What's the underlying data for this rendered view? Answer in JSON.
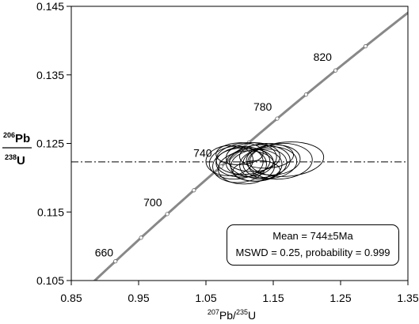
{
  "chart_data": {
    "type": "scatter",
    "subtype": "concordia",
    "title": "",
    "xlabel": "207Pb/235U",
    "ylabel": "206Pb/238U",
    "axis_labels": {
      "x": {
        "sup": "207",
        "mid": "Pb/",
        "sup2": "235",
        "end": "U"
      },
      "y_num": {
        "sup": "206",
        "base": "Pb"
      },
      "y_den": {
        "sup": "238",
        "base": "U"
      }
    },
    "xlim": [
      0.85,
      1.35
    ],
    "ylim": [
      0.105,
      0.145
    ],
    "x_ticks": [
      "0.85",
      "0.95",
      "1.05",
      "1.15",
      "1.25",
      "1.35"
    ],
    "y_ticks": [
      "0.105",
      "0.115",
      "0.125",
      "0.135",
      "0.145"
    ],
    "concordia_ages": [
      {
        "label": "660",
        "age": 660
      },
      {
        "label": "700",
        "age": 700
      },
      {
        "label": "740",
        "age": 740
      },
      {
        "label": "780",
        "age": 780
      },
      {
        "label": "820",
        "age": 820
      }
    ],
    "concordia_markers_ma": [
      660,
      680,
      700,
      720,
      740,
      760,
      780,
      800,
      820,
      840
    ],
    "mean_line_y": 0.1223,
    "ellipses": [
      {
        "x": 1.085,
        "y": 0.1225,
        "rx": 0.035,
        "ry": 0.0022,
        "tilt": -3
      },
      {
        "x": 1.095,
        "y": 0.1222,
        "rx": 0.04,
        "ry": 0.0024,
        "tilt": -4
      },
      {
        "x": 1.1,
        "y": 0.1218,
        "rx": 0.04,
        "ry": 0.0025,
        "tilt": -5
      },
      {
        "x": 1.105,
        "y": 0.1223,
        "rx": 0.04,
        "ry": 0.0022,
        "tilt": -3
      },
      {
        "x": 1.11,
        "y": 0.1228,
        "rx": 0.045,
        "ry": 0.0023,
        "tilt": -4
      },
      {
        "x": 1.11,
        "y": 0.1215,
        "rx": 0.042,
        "ry": 0.0024,
        "tilt": -5
      },
      {
        "x": 1.115,
        "y": 0.1222,
        "rx": 0.035,
        "ry": 0.002,
        "tilt": -3
      },
      {
        "x": 1.12,
        "y": 0.123,
        "rx": 0.04,
        "ry": 0.0021,
        "tilt": -2
      },
      {
        "x": 1.125,
        "y": 0.1218,
        "rx": 0.038,
        "ry": 0.0023,
        "tilt": -4
      },
      {
        "x": 1.13,
        "y": 0.1224,
        "rx": 0.045,
        "ry": 0.0024,
        "tilt": -3
      },
      {
        "x": 1.135,
        "y": 0.122,
        "rx": 0.035,
        "ry": 0.0022,
        "tilt": -6
      },
      {
        "x": 1.14,
        "y": 0.1232,
        "rx": 0.04,
        "ry": 0.0018,
        "tilt": -2
      },
      {
        "x": 1.145,
        "y": 0.1222,
        "rx": 0.04,
        "ry": 0.0023,
        "tilt": -4
      },
      {
        "x": 1.15,
        "y": 0.1226,
        "rx": 0.04,
        "ry": 0.0022,
        "tilt": -3
      },
      {
        "x": 1.16,
        "y": 0.1224,
        "rx": 0.048,
        "ry": 0.0026,
        "tilt": -4
      },
      {
        "x": 1.17,
        "y": 0.1227,
        "rx": 0.055,
        "ry": 0.0025,
        "tilt": -4
      },
      {
        "x": 1.125,
        "y": 0.121,
        "rx": 0.035,
        "ry": 0.0015,
        "tilt": -2
      },
      {
        "x": 1.1,
        "y": 0.1235,
        "rx": 0.035,
        "ry": 0.0016,
        "tilt": -2
      }
    ],
    "stats": {
      "mean": "Mean = 744±5Ma",
      "mswd": "MSWD = 0.25, probability = 0.999"
    },
    "colors": {
      "concordia": "#888888",
      "ellipse": "#000000",
      "axis": "#000000"
    }
  }
}
